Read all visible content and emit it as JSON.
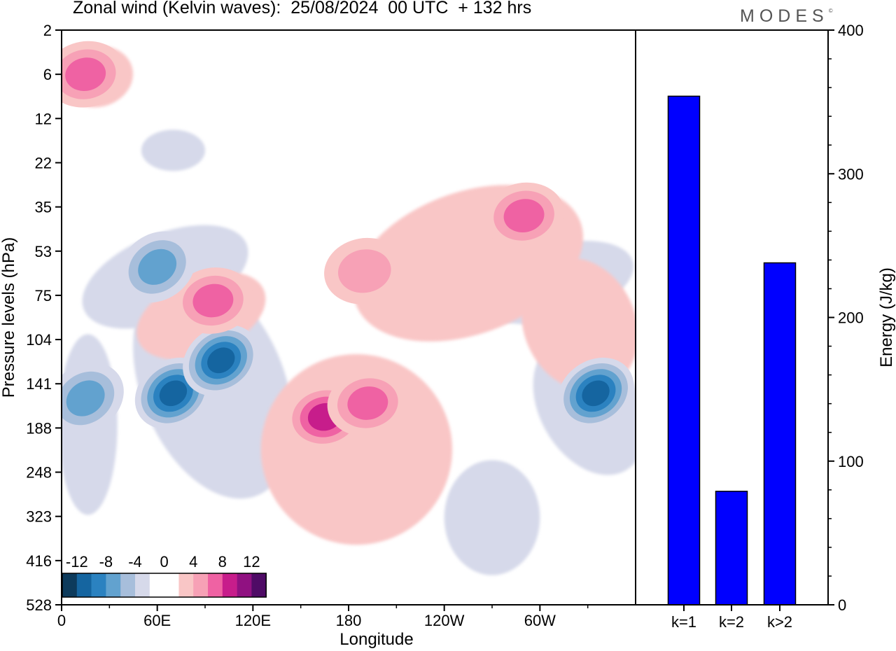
{
  "title": "Zonal wind (Kelvin waves):  25/08/2024  00 UTC  + 132 hrs",
  "brand": "MODES",
  "brand_mark": "©",
  "colors": {
    "neg12": "#0d3b5c",
    "neg10": "#1565a0",
    "neg8": "#2b82c0",
    "neg6": "#62a2cf",
    "neg4": "#a7bedb",
    "neg2": "#d6d9ea",
    "pos2": "#f9c6c6",
    "pos4": "#f7a1b6",
    "pos6": "#ef62a3",
    "pos8": "#c71d8b",
    "pos10": "#901181",
    "pos12": "#4f0b66",
    "bar": "#0000ff"
  },
  "chart_data": [
    {
      "type": "heatmap",
      "title": "Zonal wind (Kelvin waves):  25/08/2024  00 UTC  + 132 hrs",
      "xlabel": "Longitude",
      "ylabel": "Pressure levels (hPa)",
      "x_ticks": [
        "0",
        "60E",
        "120E",
        "180",
        "120W",
        "60W"
      ],
      "x_tick_lon": [
        0,
        60,
        120,
        180,
        240,
        300
      ],
      "x_range": [
        0,
        360
      ],
      "y_ticks": [
        "2",
        "6",
        "12",
        "22",
        "35",
        "53",
        "75",
        "104",
        "141",
        "188",
        "248",
        "323",
        "416",
        "528"
      ],
      "y_scale": "log-pressure",
      "colorbar_labels": [
        "-12",
        "-8",
        "-4",
        "0",
        "4",
        "8",
        "12"
      ],
      "colorbar_levels": [
        -12,
        -10,
        -8,
        -6,
        -4,
        -2,
        0,
        2,
        4,
        6,
        8,
        10,
        12
      ],
      "anomalies": [
        {
          "lon": 70,
          "p": 150,
          "value": -11,
          "name": "westward-core-60E"
        },
        {
          "lon": 100,
          "p": 120,
          "value": -10,
          "name": "westward-core-100E"
        },
        {
          "lon": 15,
          "p": 155,
          "value": -6,
          "name": "westward-0E"
        },
        {
          "lon": 335,
          "p": 150,
          "value": -10,
          "name": "westward-core-30W"
        },
        {
          "lon": 165,
          "p": 175,
          "value": 9,
          "name": "eastward-core-165E"
        },
        {
          "lon": 192,
          "p": 160,
          "value": 7,
          "name": "eastward-core-170W"
        },
        {
          "lon": 95,
          "p": 78,
          "value": 6,
          "name": "eastward-100E-75hPa"
        },
        {
          "lon": 190,
          "p": 62,
          "value": 5,
          "name": "eastward-upper-180"
        },
        {
          "lon": 290,
          "p": 38,
          "value": 6,
          "name": "eastward-upper-70W"
        },
        {
          "lon": 15,
          "p": 6,
          "value": 6,
          "name": "eastward-top-0E"
        },
        {
          "lon": 60,
          "p": 60,
          "value": -7,
          "name": "westward-upper-60E"
        }
      ]
    },
    {
      "type": "bar",
      "categories": [
        "k=1",
        "k=2",
        "k>2"
      ],
      "values": [
        354,
        79,
        238
      ],
      "ylabel": "Energy (J/kg)",
      "ylim": [
        0,
        400
      ],
      "y_ticks": [
        0,
        100,
        200,
        300,
        400
      ]
    }
  ]
}
